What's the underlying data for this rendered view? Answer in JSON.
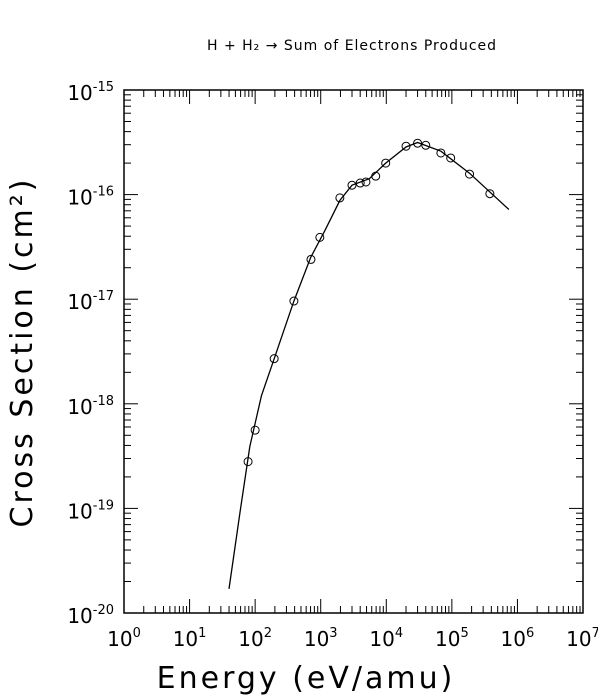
{
  "chart_data": {
    "type": "scatter-line",
    "title": "H + H₂ → Sum of Electrons Produced",
    "x_label": "Energy (eV/amu)",
    "y_label": "Cross Section (cm²)",
    "xscale": "log",
    "yscale": "log",
    "xlim": [
      1,
      10000000
    ],
    "ylim": [
      1e-20,
      1e-15
    ],
    "xticks": [
      {
        "value": 1,
        "label": "10",
        "exponent": "0"
      },
      {
        "value": 10,
        "label": "10",
        "exponent": "1"
      },
      {
        "value": 100,
        "label": "10",
        "exponent": "2"
      },
      {
        "value": 1000,
        "label": "10",
        "exponent": "3"
      },
      {
        "value": 10000,
        "label": "10",
        "exponent": "4"
      },
      {
        "value": 100000,
        "label": "10",
        "exponent": "5"
      },
      {
        "value": 1000000,
        "label": "10",
        "exponent": "6"
      },
      {
        "value": 10000000,
        "label": "10",
        "exponent": "7"
      }
    ],
    "yticks": [
      {
        "value": 1e-20,
        "label": "10",
        "exponent": "-20"
      },
      {
        "value": 1e-19,
        "label": "10",
        "exponent": "-19"
      },
      {
        "value": 1e-18,
        "label": "10",
        "exponent": "-18"
      },
      {
        "value": 1e-17,
        "label": "10",
        "exponent": "-17"
      },
      {
        "value": 1e-16,
        "label": "10",
        "exponent": "-16"
      },
      {
        "value": 1e-15,
        "label": "10",
        "exponent": "-15"
      }
    ],
    "color": "#000000",
    "points": {
      "x": [
        78,
        100,
        195,
        390,
        710,
        970,
        1960,
        3000,
        4000,
        4900,
        6900,
        9800,
        20000,
        30000,
        40000,
        68000,
        96000,
        186000,
        380000
      ],
      "values": [
        2.8e-19,
        5.6e-19,
        2.7e-18,
        9.6e-18,
        2.4e-17,
        3.9e-17,
        9.3e-17,
        1.23e-16,
        1.29e-16,
        1.32e-16,
        1.5e-16,
        2e-16,
        2.9e-16,
        3.1e-16,
        2.96e-16,
        2.5e-16,
        2.24e-16,
        1.57e-16,
        1.02e-16
      ]
    },
    "fit": {
      "x": [
        40,
        59,
        83,
        125,
        195,
        390,
        700,
        1150,
        1960,
        3000,
        5500,
        9800,
        20000,
        30000,
        68000,
        186000,
        740000
      ],
      "values": [
        1.7e-20,
        9.3e-20,
        3.9e-19,
        1.2e-18,
        2.7e-18,
        9.6e-18,
        2.5e-17,
        4.5e-17,
        8.8e-17,
        1.23e-16,
        1.42e-16,
        2e-16,
        2.85e-16,
        3.15e-16,
        2.6e-16,
        1.6e-16,
        7.2e-17
      ]
    }
  }
}
